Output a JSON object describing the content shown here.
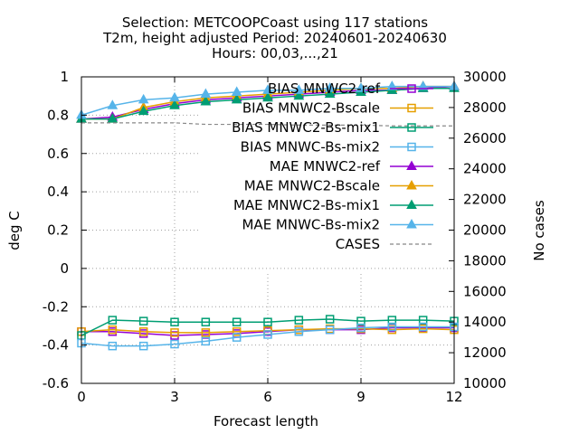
{
  "chart_data": {
    "type": "line",
    "title_lines": [
      "Selection: METCOOPCoast using   117 stations",
      "T2m, height adjusted   Period: 20240601-20240630",
      "Hours: 00,03,...,21"
    ],
    "xlabel": "Forecast length",
    "ylabel": "deg C",
    "y2label": "No cases",
    "xlim": [
      0,
      12
    ],
    "ylim": [
      -0.6,
      1.0
    ],
    "y2lim": [
      10000,
      30000
    ],
    "xticks": [
      0,
      3,
      6,
      9,
      12
    ],
    "xtick_labels": [
      "0",
      "3",
      "6",
      "9",
      "12"
    ],
    "yticks": [
      -0.6,
      -0.4,
      -0.2,
      0,
      0.2,
      0.4,
      0.6,
      0.8,
      1.0
    ],
    "ytick_labels": [
      "-0.6",
      "-0.4",
      "-0.2",
      "0",
      "0.2",
      "0.4",
      "0.6",
      "0.8",
      "1"
    ],
    "y2ticks": [
      10000,
      12000,
      14000,
      16000,
      18000,
      20000,
      22000,
      24000,
      26000,
      28000,
      30000
    ],
    "y2tick_labels": [
      "10000",
      "12000",
      "14000",
      "16000",
      "18000",
      "20000",
      "22000",
      "24000",
      "26000",
      "28000",
      "30000"
    ],
    "legend_position": "top-right",
    "grid": "partial",
    "x": [
      0,
      1,
      2,
      3,
      4,
      5,
      6,
      7,
      8,
      9,
      10,
      11,
      12
    ],
    "series": [
      {
        "name": "BIAS MNWC2-ref",
        "color": "#9400d3",
        "marker": "open-square",
        "axis": "y",
        "values": [
          -0.33,
          -0.33,
          -0.34,
          -0.35,
          -0.345,
          -0.34,
          -0.33,
          -0.32,
          -0.32,
          -0.32,
          -0.31,
          -0.31,
          -0.31
        ]
      },
      {
        "name": "BIAS MNWC2-Bscale",
        "color": "#e69f00",
        "marker": "open-square",
        "axis": "y",
        "values": [
          -0.33,
          -0.32,
          -0.33,
          -0.335,
          -0.335,
          -0.33,
          -0.325,
          -0.32,
          -0.315,
          -0.315,
          -0.32,
          -0.315,
          -0.32
        ]
      },
      {
        "name": "BIAS MNWC2-Bs-mix1",
        "color": "#009e73",
        "marker": "open-square",
        "axis": "y",
        "values": [
          -0.35,
          -0.27,
          -0.275,
          -0.28,
          -0.28,
          -0.28,
          -0.28,
          -0.27,
          -0.265,
          -0.275,
          -0.27,
          -0.27,
          -0.275
        ]
      },
      {
        "name": "BIAS MNWC-Bs-mix2",
        "color": "#56b4e9",
        "marker": "open-square",
        "axis": "y",
        "values": [
          -0.39,
          -0.405,
          -0.405,
          -0.395,
          -0.38,
          -0.36,
          -0.345,
          -0.33,
          -0.32,
          -0.31,
          -0.305,
          -0.305,
          -0.305
        ]
      },
      {
        "name": "MAE MNWC2-ref",
        "color": "#9400d3",
        "marker": "filled-triangle",
        "axis": "y",
        "values": [
          0.78,
          0.79,
          0.83,
          0.86,
          0.88,
          0.89,
          0.9,
          0.91,
          0.92,
          0.93,
          0.93,
          0.94,
          0.95
        ]
      },
      {
        "name": "MAE MNWC2-Bscale",
        "color": "#e69f00",
        "marker": "filled-triangle",
        "axis": "y",
        "values": [
          0.78,
          0.78,
          0.84,
          0.87,
          0.89,
          0.9,
          0.91,
          0.92,
          0.93,
          0.94,
          0.94,
          0.95,
          0.95
        ]
      },
      {
        "name": "MAE MNWC2-Bs-mix1",
        "color": "#009e73",
        "marker": "filled-triangle",
        "axis": "y",
        "values": [
          0.78,
          0.78,
          0.82,
          0.85,
          0.87,
          0.88,
          0.89,
          0.9,
          0.91,
          0.92,
          0.93,
          0.94,
          0.94
        ]
      },
      {
        "name": "MAE MNWC-Bs-mix2",
        "color": "#56b4e9",
        "marker": "filled-triangle",
        "axis": "y",
        "values": [
          0.8,
          0.85,
          0.88,
          0.89,
          0.91,
          0.92,
          0.93,
          0.93,
          0.94,
          0.94,
          0.95,
          0.95,
          0.95
        ]
      },
      {
        "name": "CASES",
        "color": "#888888",
        "marker": "none",
        "dashed": true,
        "axis": "y2",
        "values": [
          27000,
          27000,
          27000,
          27000,
          26900,
          26900,
          26900,
          26850,
          26850,
          26850,
          26800,
          26800,
          26800
        ]
      }
    ]
  }
}
